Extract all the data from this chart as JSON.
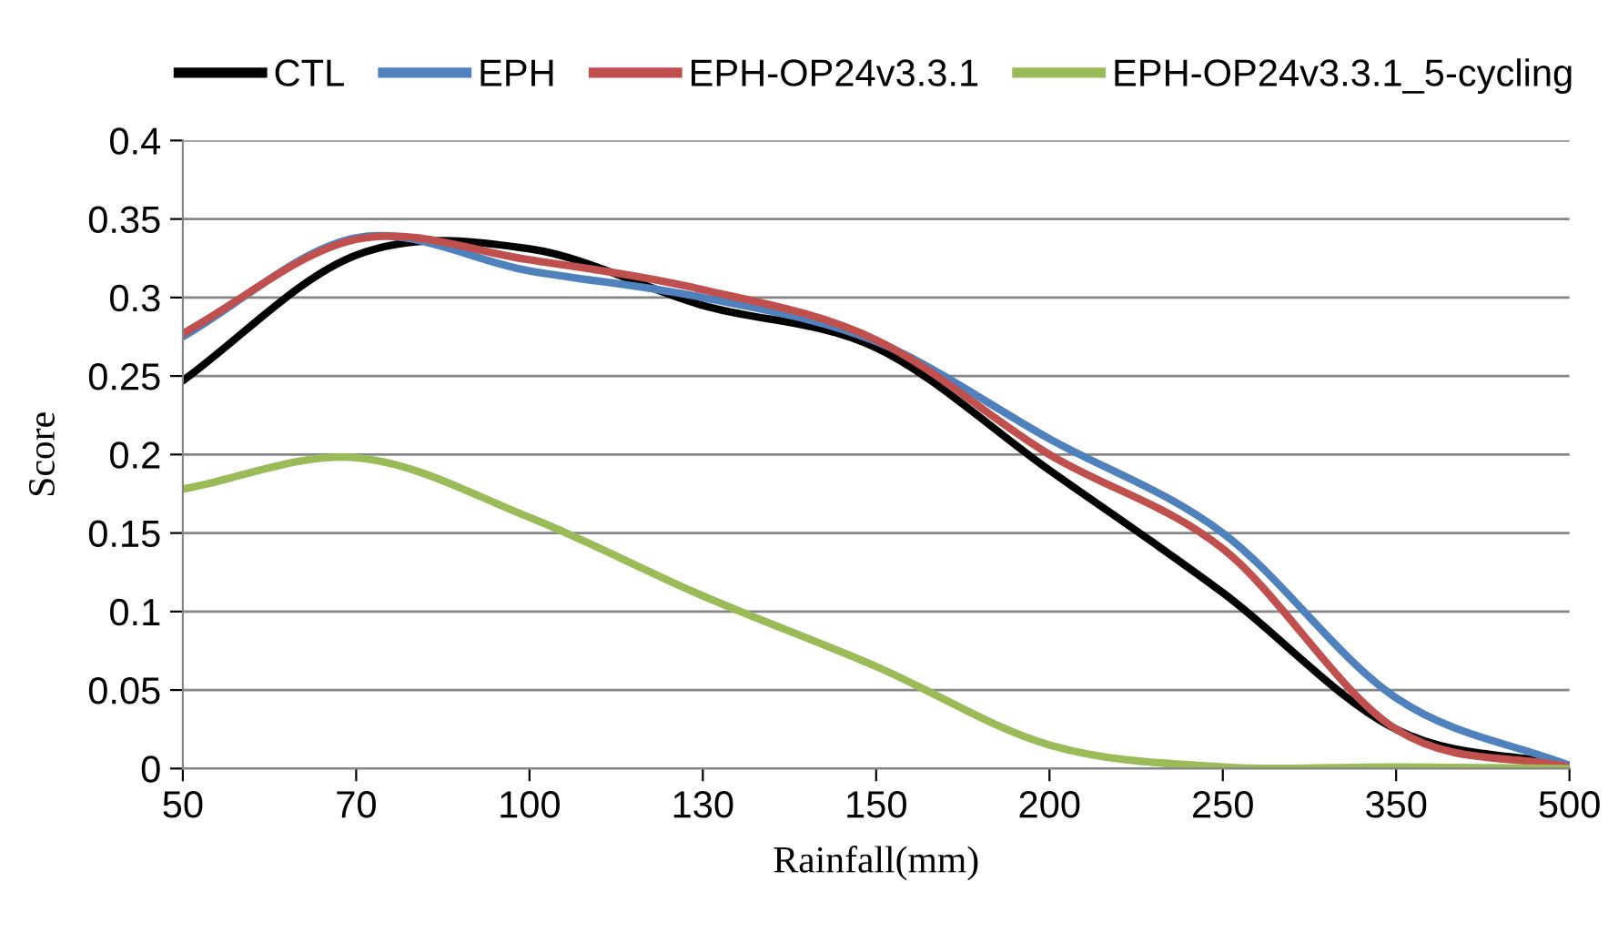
{
  "chart_data": {
    "type": "line",
    "xlabel": "Rainfall(mm)",
    "ylabel": "Score",
    "categories": [
      "50",
      "70",
      "100",
      "130",
      "150",
      "200",
      "250",
      "350",
      "500"
    ],
    "ylim": [
      0,
      0.4
    ],
    "yticks": [
      0,
      0.05,
      0.1,
      0.15,
      0.2,
      0.25,
      0.3,
      0.35,
      0.4
    ],
    "grid": "y",
    "legend": "top",
    "marker": "none",
    "line_style": "solid",
    "series": [
      {
        "name": "CTL",
        "color": "#000000",
        "values": [
          0.247,
          0.327,
          0.331,
          0.295,
          0.268,
          0.19,
          0.112,
          0.025,
          0.002
        ]
      },
      {
        "name": "EPH",
        "color": "#4f81bd",
        "values": [
          0.275,
          0.338,
          0.317,
          0.3,
          0.272,
          0.21,
          0.15,
          0.045,
          0.002
        ]
      },
      {
        "name": "EPH-OP24v3.3.1",
        "color": "#c0504d",
        "values": [
          0.277,
          0.337,
          0.324,
          0.305,
          0.273,
          0.2,
          0.14,
          0.025,
          0.001
        ]
      },
      {
        "name": "EPH-OP24v3.3.1_5-cycling",
        "color": "#9bbb59",
        "values": [
          0.178,
          0.198,
          0.16,
          0.11,
          0.065,
          0.015,
          0.001,
          0.001,
          0.0
        ]
      }
    ]
  }
}
